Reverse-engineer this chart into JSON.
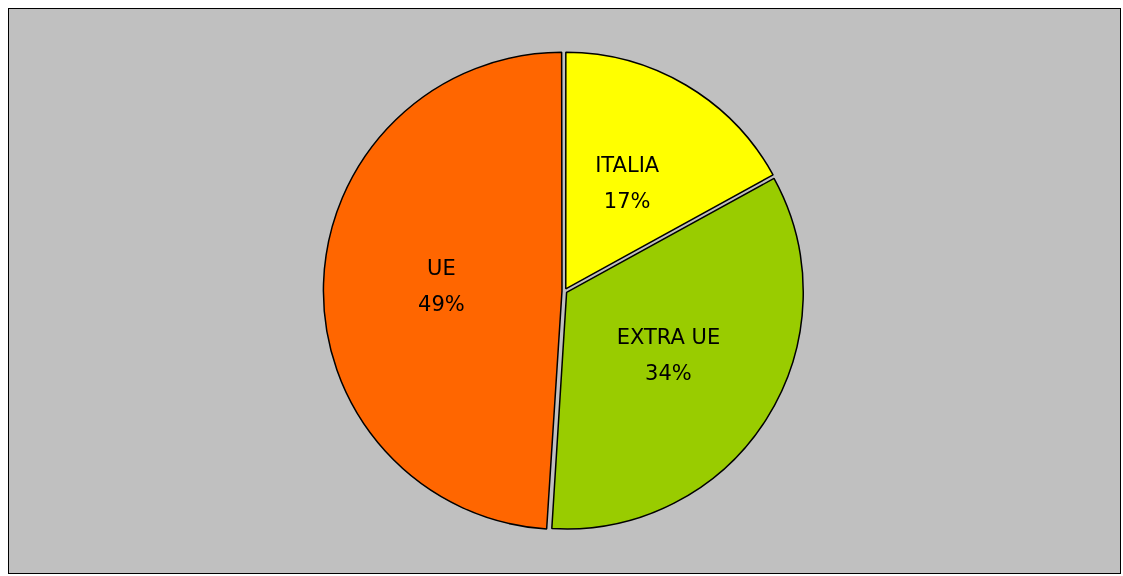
{
  "chart_data": {
    "type": "pie",
    "categories": [
      "ITALIA",
      "EXTRA UE",
      "UE"
    ],
    "values": [
      17,
      34,
      49
    ],
    "colors": [
      "#ffff00",
      "#99cc00",
      "#ff6600"
    ],
    "value_labels": [
      "17%",
      "34%",
      "49%"
    ],
    "legend": false
  }
}
